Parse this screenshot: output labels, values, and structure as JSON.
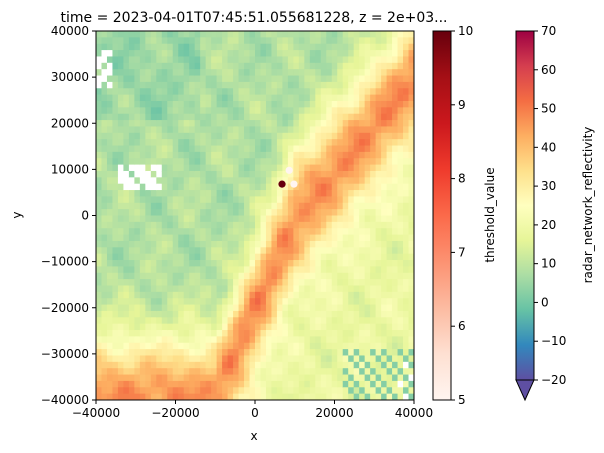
{
  "chart_data": {
    "type": "heatmap",
    "title": "time = 2023-04-01T07:45:51.055681228, z = 2e+03...",
    "xlabel": "x",
    "ylabel": "y",
    "xlim": [
      -40000,
      40000
    ],
    "ylim": [
      -40000,
      40000
    ],
    "x_ticks": [
      -40000,
      -20000,
      0,
      20000,
      40000
    ],
    "x_tick_labels": [
      "−40000",
      "−20000",
      "0",
      "20000",
      "40000"
    ],
    "y_ticks": [
      -40000,
      -30000,
      -20000,
      -10000,
      0,
      10000,
      20000,
      30000,
      40000
    ],
    "y_tick_labels": [
      "−40000",
      "−30000",
      "−20000",
      "−10000",
      "0",
      "10000",
      "20000",
      "30000",
      "40000"
    ],
    "grid": false,
    "field": {
      "name": "radar_network_reflectivity",
      "colormap": "Spectral_r",
      "vmin": -20,
      "vmax": 70,
      "band": {
        "description_axis_points": [
          [
            -10000,
            -40000
          ],
          [
            0,
            -20000
          ],
          [
            10000,
            0
          ],
          [
            25000,
            15000
          ],
          [
            40000,
            30000
          ]
        ],
        "core_value": 47
      },
      "background_value_nw": 8,
      "background_value_se": 18,
      "missing_color": "#ffffff"
    },
    "points": {
      "name": "threshold_value",
      "colormap": "Reds",
      "vmin": 5,
      "vmax": 10,
      "items": [
        {
          "x": 6800,
          "y": 6800,
          "value": 10
        },
        {
          "x": 8600,
          "y": 9800,
          "value": 5
        },
        {
          "x": 9800,
          "y": 6800,
          "value": 5
        }
      ]
    },
    "colorbars": [
      {
        "label": "threshold_value",
        "colormap": "Reds",
        "ticks": [
          5,
          6,
          7,
          8,
          9,
          10
        ],
        "tick_labels": [
          "5",
          "6",
          "7",
          "8",
          "9",
          "10"
        ],
        "extend": "neither"
      },
      {
        "label": "radar_network_reflectivity",
        "colormap": "Spectral_r",
        "ticks": [
          -20,
          -10,
          0,
          10,
          20,
          30,
          40,
          50,
          60,
          70
        ],
        "tick_labels": [
          "−20",
          "−10",
          "0",
          "10",
          "20",
          "30",
          "40",
          "50",
          "60",
          "70"
        ],
        "extend": "min"
      }
    ]
  }
}
